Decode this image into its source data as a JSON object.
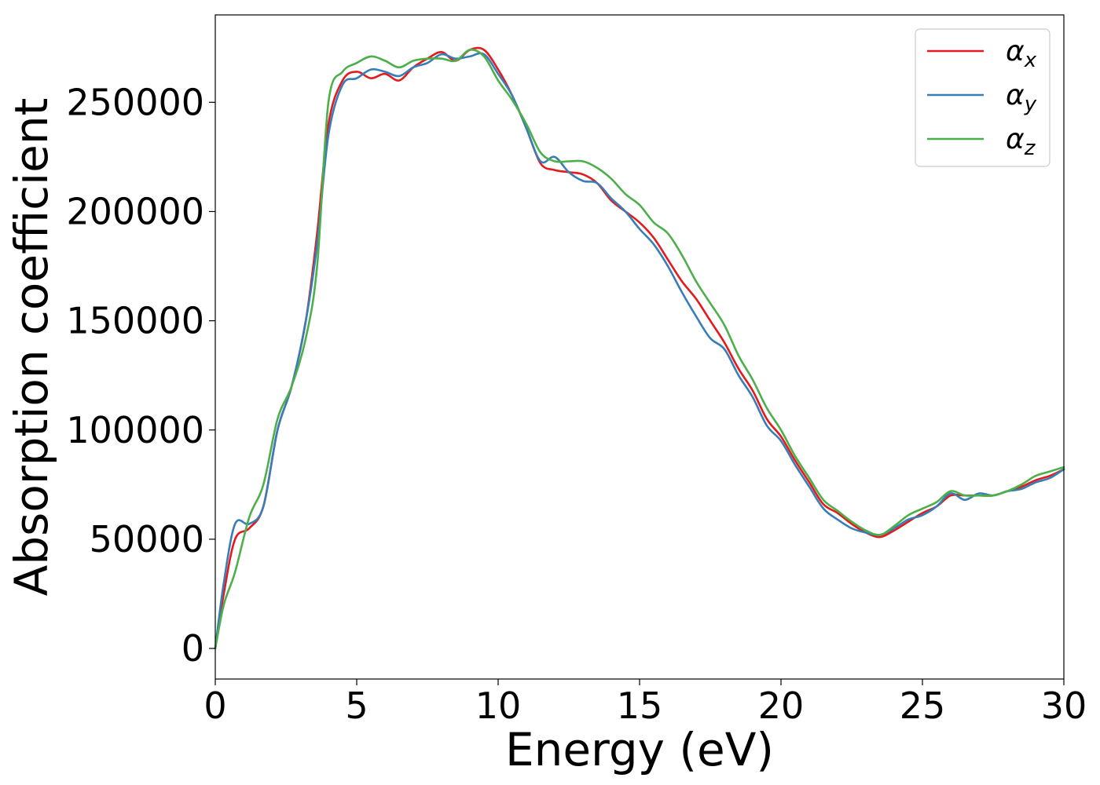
{
  "chart_data": {
    "type": "line",
    "title": "",
    "xlabel": "Energy (eV)",
    "ylabel": "Absorption coefficient",
    "xlim": [
      0,
      30
    ],
    "ylim": [
      -14000,
      290000
    ],
    "xticks": [
      0,
      5,
      10,
      15,
      20,
      25,
      30
    ],
    "yticks": [
      0,
      50000,
      100000,
      150000,
      200000,
      250000
    ],
    "grid": false,
    "legend_position": "top-right",
    "series": [
      {
        "name": "α",
        "subscript": "x",
        "color": "#e41a1c",
        "x": [
          0,
          0.3,
          0.7,
          1.2,
          1.7,
          2.2,
          2.7,
          3.2,
          3.6,
          4.0,
          4.5,
          5.0,
          5.5,
          6.0,
          6.5,
          7.0,
          7.5,
          8.0,
          8.5,
          9.0,
          9.5,
          10.0,
          10.5,
          11.0,
          11.5,
          12.0,
          12.5,
          13.0,
          13.5,
          14.0,
          14.5,
          15.0,
          15.5,
          16.0,
          16.5,
          17.0,
          17.5,
          18.0,
          18.5,
          19.0,
          19.5,
          20.0,
          20.5,
          21.0,
          21.5,
          22.0,
          22.5,
          23.0,
          23.5,
          24.0,
          24.5,
          25.0,
          25.5,
          26.0,
          26.5,
          27.0,
          27.5,
          28.0,
          28.5,
          29.0,
          29.5,
          30.0
        ],
        "y": [
          0,
          25000,
          50000,
          55000,
          65000,
          100000,
          120000,
          150000,
          190000,
          240000,
          260000,
          264000,
          261000,
          263000,
          260000,
          266000,
          270000,
          273000,
          269000,
          274000,
          274000,
          265000,
          253000,
          238000,
          222000,
          219000,
          218000,
          217000,
          213000,
          205000,
          200000,
          195000,
          188000,
          178000,
          168000,
          160000,
          150000,
          140000,
          128000,
          118000,
          105000,
          97000,
          86000,
          76000,
          66000,
          62000,
          57000,
          53000,
          51000,
          54000,
          58000,
          62000,
          65000,
          70000,
          70000,
          70000,
          70000,
          72000,
          74000,
          77000,
          79000,
          82000
        ]
      },
      {
        "name": "α",
        "subscript": "y",
        "color": "#377eb8",
        "x": [
          0,
          0.3,
          0.7,
          1.2,
          1.7,
          2.2,
          2.7,
          3.2,
          3.6,
          4.0,
          4.5,
          5.0,
          5.5,
          6.0,
          6.5,
          7.0,
          7.5,
          8.0,
          8.5,
          9.0,
          9.5,
          10.0,
          10.5,
          11.0,
          11.5,
          12.0,
          12.5,
          13.0,
          13.5,
          14.0,
          14.5,
          15.0,
          15.5,
          16.0,
          16.5,
          17.0,
          17.5,
          18.0,
          18.5,
          19.0,
          19.5,
          20.0,
          20.5,
          21.0,
          21.5,
          22.0,
          22.5,
          23.0,
          23.5,
          24.0,
          24.5,
          25.0,
          25.5,
          26.0,
          26.5,
          27.0,
          27.5,
          28.0,
          28.5,
          29.0,
          29.5,
          30.0
        ],
        "y": [
          0,
          30000,
          57000,
          57000,
          65000,
          100000,
          120000,
          150000,
          185000,
          235000,
          258000,
          261000,
          265000,
          264000,
          262000,
          266000,
          268000,
          272000,
          270000,
          271000,
          272000,
          263000,
          253000,
          238000,
          223000,
          225000,
          218000,
          214000,
          213000,
          206000,
          200000,
          192000,
          185000,
          175000,
          163000,
          152000,
          142000,
          137000,
          125000,
          115000,
          102000,
          95000,
          84000,
          74000,
          64000,
          59000,
          55000,
          53000,
          52000,
          55000,
          59000,
          61000,
          65000,
          71000,
          68000,
          71000,
          70000,
          72000,
          73000,
          76000,
          78000,
          82000
        ]
      },
      {
        "name": "α",
        "subscript": "z",
        "color": "#4daf4a",
        "x": [
          0,
          0.3,
          0.7,
          1.2,
          1.7,
          2.2,
          2.7,
          3.2,
          3.6,
          4.0,
          4.5,
          5.0,
          5.5,
          6.0,
          6.5,
          7.0,
          7.5,
          8.0,
          8.5,
          9.0,
          9.5,
          10.0,
          10.5,
          11.0,
          11.5,
          12.0,
          12.5,
          13.0,
          13.5,
          14.0,
          14.5,
          15.0,
          15.5,
          16.0,
          16.5,
          17.0,
          17.5,
          18.0,
          18.5,
          19.0,
          19.5,
          20.0,
          20.5,
          21.0,
          21.5,
          22.0,
          22.5,
          23.0,
          23.5,
          24.0,
          24.5,
          25.0,
          25.5,
          26.0,
          26.5,
          27.0,
          27.5,
          28.0,
          28.5,
          29.0,
          29.5,
          30.0
        ],
        "y": [
          0,
          20000,
          35000,
          60000,
          75000,
          105000,
          120000,
          142000,
          175000,
          250000,
          264000,
          268000,
          271000,
          269000,
          266000,
          269000,
          270000,
          270000,
          269000,
          274000,
          271000,
          260000,
          251000,
          240000,
          227000,
          223000,
          223000,
          223000,
          220000,
          215000,
          208000,
          203000,
          195000,
          190000,
          180000,
          168000,
          158000,
          148000,
          134000,
          123000,
          110000,
          100000,
          88000,
          78000,
          68000,
          63000,
          58000,
          54000,
          52000,
          56000,
          61000,
          64000,
          67000,
          72000,
          70000,
          70000,
          70000,
          72000,
          75000,
          79000,
          81000,
          83000
        ]
      }
    ]
  }
}
